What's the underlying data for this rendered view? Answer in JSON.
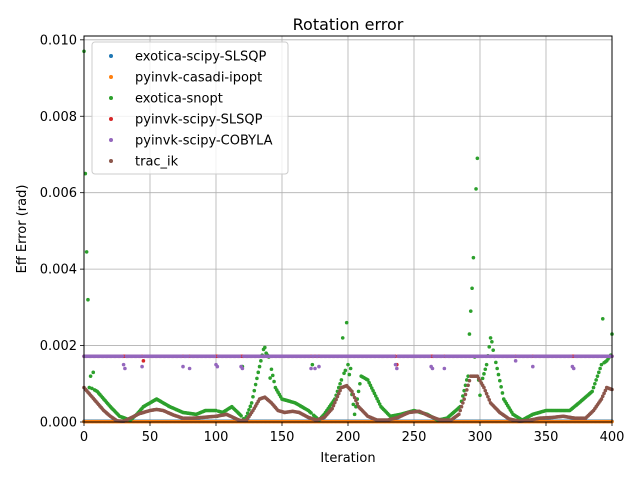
{
  "chart_data": {
    "type": "scatter",
    "title": "Rotation error",
    "xlabel": "Iteration",
    "ylabel": "Eff Error (rad)",
    "xlim": [
      0,
      400
    ],
    "ylim": [
      0,
      0.0101
    ],
    "x_ticks": [
      0,
      50,
      100,
      150,
      200,
      250,
      300,
      350,
      400
    ],
    "x_tick_labels": [
      "0",
      "50",
      "100",
      "150",
      "200",
      "250",
      "300",
      "350",
      "400"
    ],
    "y_ticks": [
      0,
      0.002,
      0.004,
      0.006,
      0.008,
      0.01
    ],
    "y_tick_labels": [
      "0.000",
      "0.002",
      "0.004",
      "0.006",
      "0.008",
      "0.010"
    ],
    "grid": true,
    "legend_position": "top-left",
    "x_range": [
      0,
      400
    ],
    "series": [
      {
        "name": "exotica-scipy-SLSQP",
        "color": "#1f77b4",
        "pattern": "constant",
        "y": 2e-05,
        "outliers": []
      },
      {
        "name": "pyinvk-casadi-ipopt",
        "color": "#ff7f0e",
        "pattern": "constant",
        "y": 1e-05,
        "outliers": []
      },
      {
        "name": "exotica-snopt",
        "color": "#2ca02c",
        "pattern": "keypoints",
        "keypoints": [
          [
            0,
            0.0009
          ],
          [
            5,
            0.0009
          ],
          [
            10,
            0.0008
          ],
          [
            15,
            0.0006
          ],
          [
            20,
            0.0004
          ],
          [
            27,
            0.00015
          ],
          [
            35,
            5e-05
          ],
          [
            40,
            0.0002
          ],
          [
            45,
            0.0004
          ],
          [
            55,
            0.0006
          ],
          [
            65,
            0.0004
          ],
          [
            75,
            0.00025
          ],
          [
            85,
            0.0002
          ],
          [
            92,
            0.0003
          ],
          [
            100,
            0.0003
          ],
          [
            105,
            0.00025
          ],
          [
            112,
            0.0004
          ],
          [
            118,
            0.0002
          ],
          [
            122,
            5e-05
          ],
          [
            127,
            0.0005
          ],
          [
            132,
            0.0013
          ],
          [
            136,
            0.0019
          ],
          [
            140,
            0.0017
          ],
          [
            145,
            0.0009
          ],
          [
            150,
            0.0006
          ],
          [
            160,
            0.0005
          ],
          [
            170,
            0.0003
          ],
          [
            178,
            5e-05
          ],
          [
            182,
            0.0002
          ],
          [
            190,
            0.0006
          ],
          [
            196,
            0.0012
          ],
          [
            200,
            0.0015
          ],
          [
            205,
            0.0002
          ],
          [
            210,
            0.0012
          ],
          [
            215,
            0.0011
          ],
          [
            225,
            0.0004
          ],
          [
            232,
            0.00015
          ],
          [
            240,
            0.0002
          ],
          [
            250,
            0.0003
          ],
          [
            260,
            0.0002
          ],
          [
            268,
            5e-05
          ],
          [
            275,
            0.0001
          ],
          [
            285,
            0.0004
          ],
          [
            290,
            0.0011
          ],
          [
            296,
            0.0017
          ],
          [
            300,
            0.0009
          ],
          [
            305,
            0.0015
          ],
          [
            308,
            0.0022
          ],
          [
            313,
            0.0014
          ],
          [
            318,
            0.0006
          ],
          [
            325,
            0.0002
          ],
          [
            332,
            5e-05
          ],
          [
            340,
            0.0002
          ],
          [
            350,
            0.0003
          ],
          [
            360,
            0.0003
          ],
          [
            368,
            0.0003
          ],
          [
            375,
            0.0005
          ],
          [
            385,
            0.0008
          ],
          [
            392,
            0.0015
          ],
          [
            396,
            0.0016
          ],
          [
            400,
            0.0018
          ]
        ],
        "outliers": [
          [
            0,
            0.0097
          ],
          [
            1,
            0.0065
          ],
          [
            2,
            0.00445
          ],
          [
            3,
            0.0032
          ],
          [
            5,
            0.0012
          ],
          [
            7,
            0.0013
          ],
          [
            101,
            0.00015
          ],
          [
            120,
            0.00145
          ],
          [
            137,
            0.00195
          ],
          [
            141,
            0.00115
          ],
          [
            173,
            0.0015
          ],
          [
            196,
            0.0022
          ],
          [
            199,
            0.0026
          ],
          [
            202,
            0.0014
          ],
          [
            292,
            0.0023
          ],
          [
            293,
            0.0029
          ],
          [
            294,
            0.0035
          ],
          [
            295,
            0.0043
          ],
          [
            297,
            0.0061
          ],
          [
            298,
            0.0069
          ],
          [
            300,
            0.0007
          ],
          [
            309,
            0.0021
          ],
          [
            393,
            0.0027
          ],
          [
            400,
            0.0023
          ]
        ]
      },
      {
        "name": "pyinvk-scipy-SLSQP",
        "color": "#d62728",
        "pattern": "constant",
        "y": 0.00172,
        "outliers": [
          [
            45,
            0.0016
          ],
          [
            237,
            0.0015
          ]
        ]
      },
      {
        "name": "pyinvk-scipy-COBYLA",
        "color": "#9467bd",
        "pattern": "constant",
        "y": 0.00172,
        "outliers": [
          [
            30,
            0.0015
          ],
          [
            31,
            0.0014
          ],
          [
            44,
            0.00145
          ],
          [
            75,
            0.00145
          ],
          [
            80,
            0.0014
          ],
          [
            100,
            0.0015
          ],
          [
            101,
            0.00145
          ],
          [
            119,
            0.00145
          ],
          [
            120,
            0.0014
          ],
          [
            172,
            0.0014
          ],
          [
            175,
            0.0014
          ],
          [
            178,
            0.00145
          ],
          [
            236,
            0.0015
          ],
          [
            237,
            0.0014
          ],
          [
            263,
            0.00145
          ],
          [
            264,
            0.0014
          ],
          [
            273,
            0.0014
          ],
          [
            327,
            0.0016
          ],
          [
            340,
            0.00145
          ],
          [
            370,
            0.00145
          ],
          [
            371,
            0.0014
          ]
        ]
      },
      {
        "name": "trac_ik",
        "color": "#8c564b",
        "pattern": "keypoints",
        "keypoints": [
          [
            0,
            0.0009
          ],
          [
            5,
            0.0007
          ],
          [
            10,
            0.0005
          ],
          [
            15,
            0.0003
          ],
          [
            20,
            0.00015
          ],
          [
            25,
            3e-05
          ],
          [
            30,
            2e-05
          ],
          [
            35,
            0.0001
          ],
          [
            42,
            0.00022
          ],
          [
            50,
            0.0003
          ],
          [
            55,
            0.00033
          ],
          [
            60,
            0.0003
          ],
          [
            68,
            0.00018
          ],
          [
            75,
            0.0001
          ],
          [
            82,
            0.0001
          ],
          [
            90,
            0.00012
          ],
          [
            100,
            0.00015
          ],
          [
            108,
            0.0002
          ],
          [
            113,
            0.00012
          ],
          [
            118,
            4e-05
          ],
          [
            123,
            4e-05
          ],
          [
            128,
            0.0003
          ],
          [
            133,
            0.0006
          ],
          [
            137,
            0.00065
          ],
          [
            142,
            0.0005
          ],
          [
            147,
            0.0003
          ],
          [
            152,
            0.00025
          ],
          [
            158,
            0.00028
          ],
          [
            163,
            0.00025
          ],
          [
            170,
            0.00012
          ],
          [
            176,
            5e-05
          ],
          [
            182,
            0.00012
          ],
          [
            188,
            0.00035
          ],
          [
            195,
            0.0009
          ],
          [
            199,
            0.00095
          ],
          [
            203,
            0.0008
          ],
          [
            208,
            0.0004
          ],
          [
            215,
            0.00015
          ],
          [
            222,
            5e-05
          ],
          [
            230,
            5e-05
          ],
          [
            238,
            0.00012
          ],
          [
            246,
            0.00025
          ],
          [
            254,
            0.00028
          ],
          [
            262,
            0.00015
          ],
          [
            270,
            5e-05
          ],
          [
            278,
            5e-05
          ],
          [
            284,
            0.0002
          ],
          [
            288,
            0.0006
          ],
          [
            293,
            0.0012
          ],
          [
            298,
            0.0012
          ],
          [
            303,
            0.0009
          ],
          [
            308,
            0.0005
          ],
          [
            315,
            0.00025
          ],
          [
            322,
            8e-05
          ],
          [
            330,
            2e-05
          ],
          [
            338,
            5e-05
          ],
          [
            345,
            0.0001
          ],
          [
            355,
            0.00012
          ],
          [
            363,
            0.00015
          ],
          [
            372,
            0.0001
          ],
          [
            380,
            0.0001
          ],
          [
            386,
            0.0003
          ],
          [
            392,
            0.0006
          ],
          [
            396,
            0.0009
          ],
          [
            400,
            0.00085
          ]
        ],
        "outliers": []
      }
    ]
  }
}
